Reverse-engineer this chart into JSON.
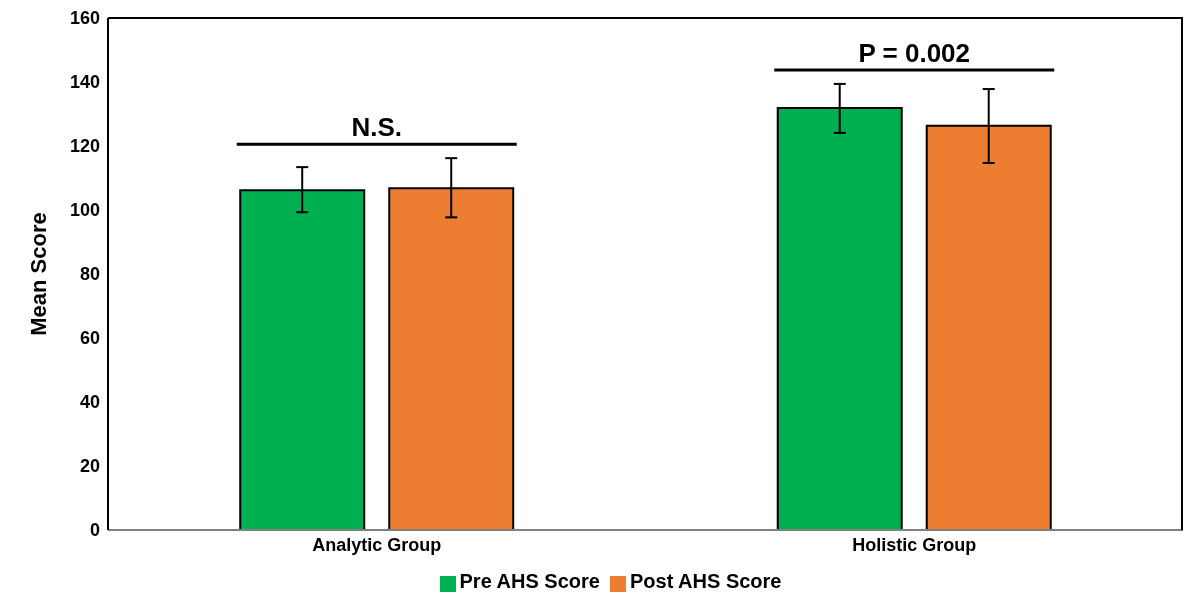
{
  "chart_data": {
    "type": "bar",
    "ylabel": "Mean Score",
    "categories": [
      "Analytic Group",
      "Holistic Group"
    ],
    "series": [
      {
        "name": "Pre AHS Score",
        "color": "#00b050",
        "values": [
          106.2,
          131.9
        ],
        "errors": [
          [
            99.3,
            113.4
          ],
          [
            124.1,
            139.4
          ]
        ]
      },
      {
        "name": "Post AHS Score",
        "color": "#ed7d31",
        "values": [
          106.8,
          126.3
        ],
        "errors": [
          [
            97.7,
            116.2
          ],
          [
            114.7,
            137.8
          ]
        ]
      }
    ],
    "ylim": [
      0,
      160
    ],
    "yticks": [
      0,
      20,
      40,
      60,
      80,
      100,
      120,
      140,
      160
    ],
    "legend": "bottom",
    "annotations": [
      "N.S.",
      "P = 0.002"
    ]
  }
}
